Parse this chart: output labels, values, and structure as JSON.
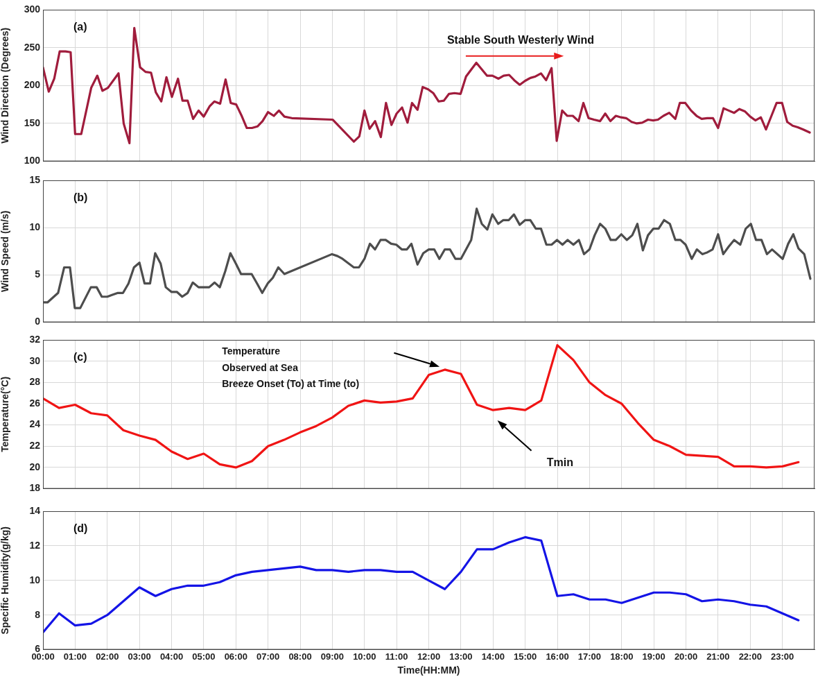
{
  "chart_data": [
    {
      "type": "line",
      "ylabel": "Wind Direction (Degrees)",
      "color": "#a01c3c",
      "grid": true,
      "tick_labels": "y",
      "xlim": [
        0,
        24
      ],
      "ylim": [
        100,
        300
      ],
      "yticks": [
        100,
        150,
        200,
        250,
        300
      ],
      "xticks": [
        {
          "value": 0,
          "label": null
        },
        {
          "value": 1,
          "label": null
        },
        {
          "value": 2,
          "label": null
        },
        {
          "value": 3,
          "label": null
        },
        {
          "value": 4,
          "label": null
        },
        {
          "value": 5,
          "label": null
        },
        {
          "value": 6,
          "label": null
        },
        {
          "value": 7,
          "label": null
        },
        {
          "value": 8,
          "label": null
        },
        {
          "value": 9,
          "label": null
        },
        {
          "value": 10,
          "label": null
        },
        {
          "value": 11,
          "label": null
        },
        {
          "value": 12,
          "label": null
        },
        {
          "value": 13,
          "label": null
        },
        {
          "value": 14,
          "label": null
        },
        {
          "value": 15,
          "label": null
        },
        {
          "value": 16,
          "label": null
        },
        {
          "value": 17,
          "label": null
        },
        {
          "value": 18,
          "label": null
        },
        {
          "value": 19,
          "label": null
        },
        {
          "value": 20,
          "label": null
        },
        {
          "value": 21,
          "label": null
        },
        {
          "value": 22,
          "label": null
        },
        {
          "value": 23,
          "label": null
        }
      ],
      "annotations": [
        "(a)",
        "Stable South Westerly Wind"
      ],
      "x": [
        0,
        0.18,
        0.35,
        0.52,
        0.7,
        0.86,
        1.0,
        1.19,
        1.5,
        1.69,
        1.85,
        2.02,
        2.35,
        2.51,
        2.69,
        2.84,
        3.02,
        3.19,
        3.36,
        3.51,
        3.68,
        3.84,
        4.01,
        4.2,
        4.34,
        4.5,
        4.67,
        4.84,
        5.0,
        5.19,
        5.33,
        5.51,
        5.68,
        5.84,
        6.01,
        6.17,
        6.34,
        6.5,
        6.67,
        6.83,
        7.0,
        7.18,
        7.34,
        7.51,
        7.74,
        9.01,
        9.67,
        9.84,
        10.0,
        10.16,
        10.33,
        10.51,
        10.67,
        10.84,
        11.0,
        11.17,
        11.34,
        11.48,
        11.65,
        11.81,
        11.98,
        12.14,
        12.31,
        12.47,
        12.63,
        12.8,
        12.99,
        13.16,
        13.48,
        13.81,
        13.98,
        14.17,
        14.33,
        14.5,
        14.66,
        14.83,
        14.99,
        15.16,
        15.32,
        15.49,
        15.65,
        15.82,
        15.98,
        16.15,
        16.31,
        16.48,
        16.66,
        16.81,
        16.97,
        17.14,
        17.33,
        17.49,
        17.65,
        17.82,
        17.98,
        18.14,
        18.31,
        18.47,
        18.64,
        18.82,
        18.98,
        19.13,
        19.3,
        19.48,
        19.67,
        19.81,
        19.98,
        20.16,
        20.33,
        20.49,
        20.66,
        20.84,
        21.0,
        21.17,
        21.33,
        21.5,
        21.66,
        21.83,
        22.0,
        22.16,
        22.33,
        22.49,
        22.66,
        22.82,
        22.99,
        23.15,
        23.32,
        23.48,
        23.65,
        23.85
      ],
      "values": [
        224,
        192,
        209,
        245,
        245,
        244,
        136,
        136,
        197,
        213,
        193,
        197,
        216,
        150,
        124,
        276,
        224,
        218,
        217,
        191,
        179,
        211,
        185,
        209,
        180,
        180,
        156,
        167,
        159,
        173,
        179,
        176,
        208,
        177,
        175,
        161,
        144,
        144,
        146,
        153,
        165,
        160,
        167,
        159,
        157,
        155,
        126,
        133,
        167,
        143,
        153,
        132,
        177,
        148,
        163,
        171,
        151,
        177,
        168,
        198,
        195,
        190,
        179,
        180,
        189,
        190,
        189,
        212,
        230,
        213,
        213,
        209,
        213,
        214,
        207,
        201,
        206,
        210,
        212,
        216,
        207,
        223,
        127,
        167,
        160,
        160,
        153,
        177,
        157,
        155,
        153,
        163,
        153,
        160,
        158,
        157,
        152,
        150,
        151,
        155,
        154,
        155,
        160,
        164,
        156,
        177,
        177,
        167,
        160,
        156,
        157,
        157,
        144,
        170,
        167,
        164,
        169,
        166,
        159,
        154,
        158,
        142,
        160,
        177,
        177,
        152,
        147,
        145,
        142,
        138
      ]
    },
    {
      "type": "line",
      "ylabel": "Wind Speed (m/s)",
      "color": "#4d4d4d",
      "grid": true,
      "tick_labels": "y",
      "xlim": [
        0,
        24
      ],
      "ylim": [
        0,
        15
      ],
      "yticks": [
        0,
        5,
        10,
        15
      ],
      "xticks": [
        {
          "value": 0,
          "label": null
        },
        {
          "value": 1,
          "label": null
        },
        {
          "value": 2,
          "label": null
        },
        {
          "value": 3,
          "label": null
        },
        {
          "value": 4,
          "label": null
        },
        {
          "value": 5,
          "label": null
        },
        {
          "value": 6,
          "label": null
        },
        {
          "value": 7,
          "label": null
        },
        {
          "value": 8,
          "label": null
        },
        {
          "value": 9,
          "label": null
        },
        {
          "value": 10,
          "label": null
        },
        {
          "value": 11,
          "label": null
        },
        {
          "value": 12,
          "label": null
        },
        {
          "value": 13,
          "label": null
        },
        {
          "value": 14,
          "label": null
        },
        {
          "value": 15,
          "label": null
        },
        {
          "value": 16,
          "label": null
        },
        {
          "value": 17,
          "label": null
        },
        {
          "value": 18,
          "label": null
        },
        {
          "value": 19,
          "label": null
        },
        {
          "value": 20,
          "label": null
        },
        {
          "value": 21,
          "label": null
        },
        {
          "value": 22,
          "label": null
        },
        {
          "value": 23,
          "label": null
        }
      ],
      "annotations": [
        "(b)"
      ],
      "x": [
        0,
        0.14,
        0.47,
        0.66,
        0.84,
        0.99,
        1.16,
        1.49,
        1.67,
        1.83,
        2.0,
        2.16,
        2.33,
        2.49,
        2.66,
        2.83,
        3.0,
        3.16,
        3.33,
        3.49,
        3.66,
        3.82,
        4.0,
        4.17,
        4.33,
        4.5,
        4.66,
        4.84,
        5.01,
        5.17,
        5.34,
        5.5,
        5.67,
        5.83,
        6.0,
        6.16,
        6.33,
        6.49,
        6.66,
        6.82,
        6.99,
        7.15,
        7.32,
        7.51,
        8.99,
        9.16,
        9.32,
        9.67,
        9.83,
        10.0,
        10.17,
        10.33,
        10.5,
        10.66,
        10.83,
        10.99,
        11.16,
        11.32,
        11.46,
        11.65,
        11.83,
        12.0,
        12.17,
        12.33,
        12.5,
        12.66,
        12.83,
        13.0,
        13.32,
        13.49,
        13.65,
        13.82,
        13.98,
        14.16,
        14.32,
        14.49,
        14.65,
        14.83,
        15.0,
        15.16,
        15.33,
        15.49,
        15.66,
        15.82,
        15.99,
        16.16,
        16.32,
        16.5,
        16.67,
        16.83,
        17.0,
        17.16,
        17.33,
        17.49,
        17.66,
        17.82,
        17.99,
        18.16,
        18.33,
        18.49,
        18.66,
        18.82,
        18.99,
        19.15,
        19.32,
        19.5,
        19.67,
        19.83,
        19.99,
        20.18,
        20.34,
        20.51,
        20.67,
        20.83,
        21.0,
        21.16,
        21.33,
        21.5,
        21.69,
        21.86,
        22.02,
        22.18,
        22.35,
        22.52,
        22.68,
        23.01,
        23.18,
        23.34,
        23.5,
        23.68,
        23.87
      ],
      "values": [
        2.1,
        2.1,
        3.1,
        5.8,
        5.8,
        1.5,
        1.5,
        3.7,
        3.7,
        2.7,
        2.7,
        2.9,
        3.1,
        3.1,
        4.1,
        5.8,
        6.3,
        4.1,
        4.1,
        7.3,
        6.2,
        3.7,
        3.2,
        3.2,
        2.7,
        3.1,
        4.2,
        3.7,
        3.7,
        3.7,
        4.2,
        3.7,
        5.4,
        7.3,
        6.2,
        5.1,
        5.1,
        5.1,
        4.1,
        3.1,
        4.1,
        4.7,
        5.8,
        5.1,
        7.2,
        7.0,
        6.7,
        5.8,
        5.8,
        6.7,
        8.3,
        7.7,
        8.7,
        8.7,
        8.3,
        8.2,
        7.7,
        7.7,
        8.3,
        6.1,
        7.3,
        7.7,
        7.7,
        6.7,
        7.7,
        7.7,
        6.7,
        6.7,
        8.7,
        12.0,
        10.4,
        9.8,
        11.4,
        10.4,
        10.8,
        10.8,
        11.4,
        10.3,
        10.8,
        10.8,
        9.9,
        9.9,
        8.2,
        8.2,
        8.7,
        8.2,
        8.7,
        8.2,
        8.7,
        7.2,
        7.7,
        9.2,
        10.4,
        9.9,
        8.7,
        8.7,
        9.3,
        8.7,
        9.2,
        10.4,
        7.6,
        9.2,
        9.9,
        9.9,
        10.8,
        10.4,
        8.7,
        8.7,
        8.2,
        6.7,
        7.7,
        7.2,
        7.4,
        7.7,
        9.3,
        7.2,
        8.0,
        8.7,
        8.2,
        9.9,
        10.4,
        8.7,
        8.7,
        7.2,
        7.7,
        6.7,
        8.3,
        9.3,
        7.8,
        7.2,
        4.6
      ]
    },
    {
      "type": "line",
      "ylabel": "Temperature(°C)",
      "color": "#f01414",
      "grid": true,
      "tick_labels": "y",
      "xlim": [
        0,
        24
      ],
      "ylim": [
        18,
        32
      ],
      "yticks": [
        18,
        20,
        22,
        24,
        26,
        28,
        30,
        32
      ],
      "xticks": [
        {
          "value": 0,
          "label": null
        },
        {
          "value": 1,
          "label": null
        },
        {
          "value": 2,
          "label": null
        },
        {
          "value": 3,
          "label": null
        },
        {
          "value": 4,
          "label": null
        },
        {
          "value": 5,
          "label": null
        },
        {
          "value": 6,
          "label": null
        },
        {
          "value": 7,
          "label": null
        },
        {
          "value": 8,
          "label": null
        },
        {
          "value": 9,
          "label": null
        },
        {
          "value": 10,
          "label": null
        },
        {
          "value": 11,
          "label": null
        },
        {
          "value": 12,
          "label": null
        },
        {
          "value": 13,
          "label": null
        },
        {
          "value": 14,
          "label": null
        },
        {
          "value": 15,
          "label": null
        },
        {
          "value": 16,
          "label": null
        },
        {
          "value": 17,
          "label": null
        },
        {
          "value": 18,
          "label": null
        },
        {
          "value": 19,
          "label": null
        },
        {
          "value": 20,
          "label": null
        },
        {
          "value": 21,
          "label": null
        },
        {
          "value": 22,
          "label": null
        },
        {
          "value": 23,
          "label": null
        }
      ],
      "annotations": [
        "(c)",
        "Temperature\nObserved at Sea\nBreeze Onset (To) at Time (to)",
        "Tmin"
      ],
      "x": [
        0,
        0.5,
        1,
        1.5,
        2,
        2.5,
        3,
        3.5,
        4,
        4.5,
        5,
        5.5,
        6,
        6.5,
        7,
        7.5,
        8,
        8.5,
        9,
        9.5,
        10,
        10.5,
        11,
        11.5,
        12,
        12.5,
        13,
        13.5,
        14,
        14.5,
        15,
        15.5,
        16,
        16.5,
        17,
        17.5,
        18,
        18.5,
        19,
        19.5,
        20,
        20.5,
        21,
        21.5,
        22,
        22.5,
        23,
        23.5
      ],
      "values": [
        26.5,
        25.6,
        25.9,
        25.1,
        24.9,
        23.5,
        23.0,
        22.6,
        21.5,
        20.8,
        21.3,
        20.3,
        20.0,
        20.6,
        22.0,
        22.6,
        23.3,
        23.9,
        24.7,
        25.8,
        26.3,
        26.1,
        26.2,
        26.5,
        28.7,
        29.2,
        28.8,
        25.9,
        25.4,
        25.6,
        25.4,
        26.3,
        31.5,
        30.1,
        28.0,
        26.8,
        26.0,
        24.2,
        22.6,
        22.0,
        21.2,
        21.1,
        21.0,
        20.1,
        20.1,
        20.0,
        20.1,
        20.5
      ]
    },
    {
      "type": "line",
      "xlabel": "Time(HH:MM)",
      "ylabel": "Specific Humidity(g/kg)",
      "color": "#1414e6",
      "grid": true,
      "xlim": [
        0,
        24
      ],
      "ylim": [
        6,
        14
      ],
      "yticks": [
        6,
        8,
        10,
        12,
        14
      ],
      "xticks": [
        {
          "value": 0,
          "label": "00:00"
        },
        {
          "value": 1,
          "label": "01:00"
        },
        {
          "value": 2,
          "label": "02:00"
        },
        {
          "value": 3,
          "label": "03:00"
        },
        {
          "value": 4,
          "label": "04:00"
        },
        {
          "value": 5,
          "label": "05:00"
        },
        {
          "value": 6,
          "label": "06:00"
        },
        {
          "value": 7,
          "label": "07:00"
        },
        {
          "value": 8,
          "label": "08:00"
        },
        {
          "value": 9,
          "label": "09:00"
        },
        {
          "value": 10,
          "label": "10:00"
        },
        {
          "value": 11,
          "label": "11:00"
        },
        {
          "value": 12,
          "label": "12:00"
        },
        {
          "value": 13,
          "label": "13:00"
        },
        {
          "value": 14,
          "label": "14:00"
        },
        {
          "value": 15,
          "label": "15:00"
        },
        {
          "value": 16,
          "label": "16:00"
        },
        {
          "value": 17,
          "label": "17:00"
        },
        {
          "value": 18,
          "label": "18:00"
        },
        {
          "value": 19,
          "label": "19:00"
        },
        {
          "value": 20,
          "label": "20:00"
        },
        {
          "value": 21,
          "label": "21:00"
        },
        {
          "value": 22,
          "label": "22:00"
        },
        {
          "value": 23,
          "label": "23:00"
        }
      ],
      "annotations": [
        "(d)"
      ],
      "x": [
        0,
        0.5,
        1,
        1.5,
        2,
        2.5,
        3,
        3.5,
        4,
        4.5,
        5,
        5.5,
        6,
        6.5,
        7,
        7.5,
        8,
        8.5,
        9,
        9.5,
        10,
        10.5,
        11,
        11.5,
        12,
        12.5,
        13,
        13.5,
        14,
        14.5,
        15,
        15.5,
        16,
        16.5,
        17,
        17.5,
        18,
        18.5,
        19,
        19.5,
        20,
        20.5,
        21,
        21.5,
        22,
        22.5,
        23,
        23.5
      ],
      "values": [
        7.0,
        8.1,
        7.4,
        7.5,
        8.0,
        8.8,
        9.6,
        9.1,
        9.5,
        9.7,
        9.7,
        9.9,
        10.3,
        10.5,
        10.6,
        10.7,
        10.8,
        10.6,
        10.6,
        10.5,
        10.6,
        10.6,
        10.5,
        10.5,
        10.0,
        9.5,
        10.5,
        11.8,
        11.8,
        12.2,
        12.5,
        12.3,
        9.1,
        9.2,
        8.9,
        8.9,
        8.7,
        9.0,
        9.3,
        9.3,
        9.2,
        8.8,
        8.9,
        8.8,
        8.6,
        8.5,
        8.1,
        7.7
      ]
    }
  ]
}
